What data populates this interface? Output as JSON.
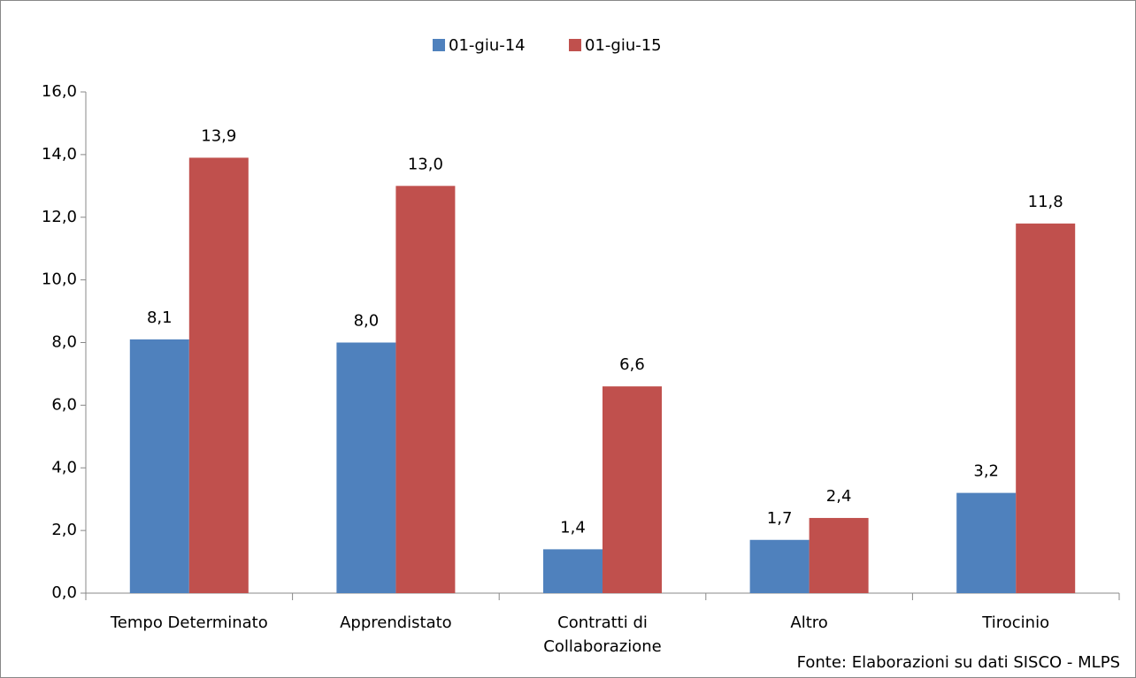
{
  "chart_data": {
    "type": "bar",
    "categories": [
      "Tempo Determinato",
      "Apprendistato",
      "Contratti di Collaborazione",
      "Altro",
      "Tirocinio"
    ],
    "series": [
      {
        "name": "01-giu-14",
        "color": "#4f81bd",
        "values": [
          8.1,
          8.0,
          1.4,
          1.7,
          3.2
        ],
        "value_labels": [
          "8,1",
          "8,0",
          "1,4",
          "1,7",
          "3,2"
        ]
      },
      {
        "name": "01-giu-15",
        "color": "#c0504d",
        "values": [
          13.9,
          13.0,
          6.6,
          2.4,
          11.8
        ],
        "value_labels": [
          "13,9",
          "13,0",
          "6,6",
          "2,4",
          "11,8"
        ]
      }
    ],
    "ylim": [
      0,
      16
    ],
    "yticks": [
      {
        "value": 0,
        "label": "0,0"
      },
      {
        "value": 2,
        "label": "2,0"
      },
      {
        "value": 4,
        "label": "4,0"
      },
      {
        "value": 6,
        "label": "6,0"
      },
      {
        "value": 8,
        "label": "8,0"
      },
      {
        "value": 10,
        "label": "10,0"
      },
      {
        "value": 12,
        "label": "12,0"
      },
      {
        "value": 14,
        "label": "14,0"
      },
      {
        "value": 16,
        "label": "16,0"
      }
    ],
    "legend": "top",
    "annotation": "Fonte: Elaborazioni su dati SISCO - MLPS"
  }
}
